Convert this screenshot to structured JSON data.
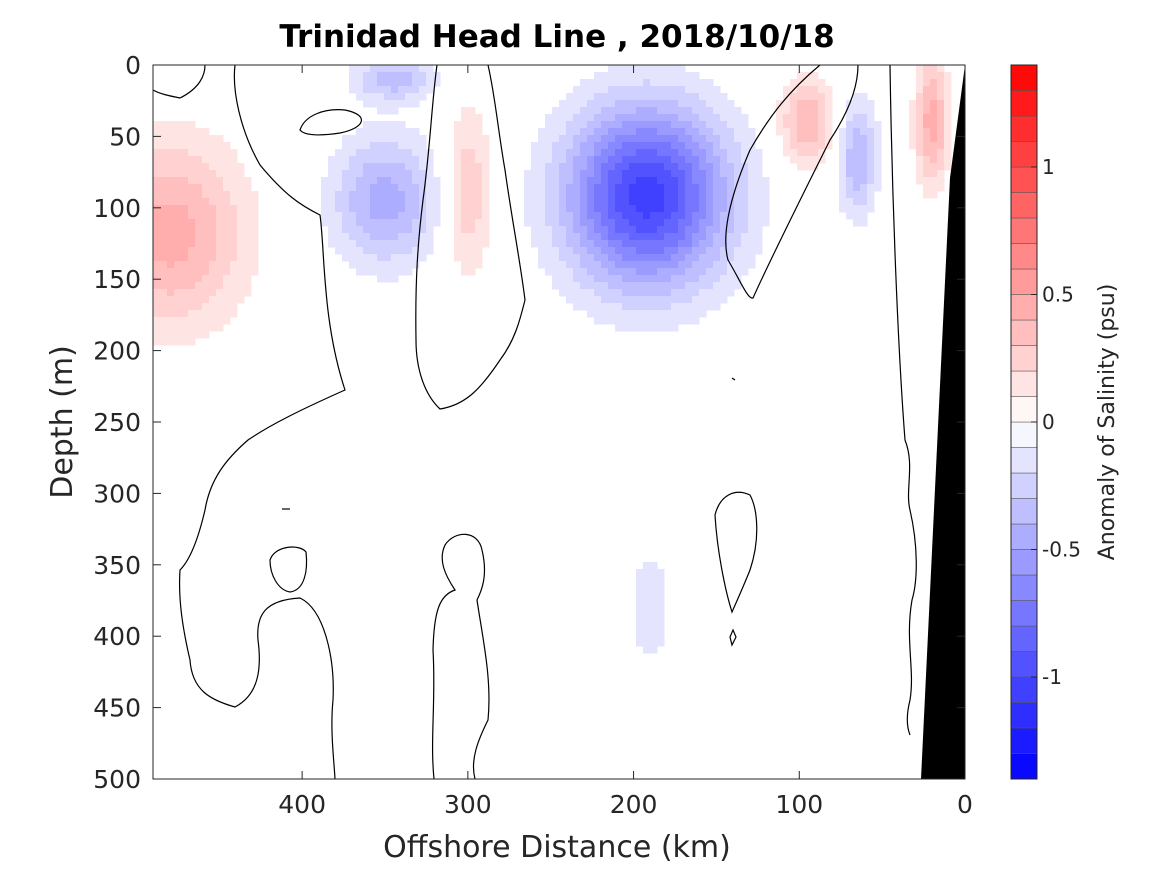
{
  "chart_data": {
    "type": "heatmap",
    "title": "Trinidad Head Line , 2018/10/18",
    "xlabel": "Offshore Distance (km)",
    "ylabel": "Depth (m)",
    "colorbar_label": "Anomaly of Salinity (psu)",
    "xlim": [
      490,
      0
    ],
    "ylim": [
      0,
      500
    ],
    "x_ticks": [
      400,
      300,
      200,
      100,
      0
    ],
    "y_ticks": [
      0,
      50,
      100,
      150,
      200,
      250,
      300,
      350,
      400,
      450,
      500
    ],
    "colorbar": {
      "range": [
        -1.4,
        1.4
      ],
      "ticks": [
        {
          "value": 1,
          "label": "1"
        },
        {
          "value": 0.5,
          "label": "0.5"
        },
        {
          "value": 0,
          "label": "0"
        },
        {
          "value": -0.5,
          "label": "-0.5"
        },
        {
          "value": -1,
          "label": "-1"
        }
      ],
      "colormap": "blue-white-red",
      "levels": 28
    },
    "anomaly_features": [
      {
        "x": 480,
        "y": 118,
        "value": 0.45,
        "sx": 45,
        "sy": 65
      },
      {
        "x": 350,
        "y": 95,
        "value": -0.45,
        "sx": 32,
        "sy": 45
      },
      {
        "x": 345,
        "y": 10,
        "value": -0.35,
        "sx": 25,
        "sy": 15
      },
      {
        "x": 300,
        "y": 90,
        "value": 0.3,
        "sx": 15,
        "sy": 60
      },
      {
        "x": 192,
        "y": 92,
        "value": -1.05,
        "sx": 48,
        "sy": 62
      },
      {
        "x": 190,
        "y": 380,
        "value": -0.12,
        "sx": 22,
        "sy": 80
      },
      {
        "x": 95,
        "y": 40,
        "value": 0.4,
        "sx": 17,
        "sy": 30
      },
      {
        "x": 65,
        "y": 65,
        "value": -0.4,
        "sx": 12,
        "sy": 40
      },
      {
        "x": 20,
        "y": 40,
        "value": 0.45,
        "sx": 10,
        "sy": 45
      }
    ],
    "contour_level": 0,
    "bottom_topography": {
      "label_color": "#000000",
      "points": [
        [
          0,
          0
        ],
        [
          0,
          500
        ],
        [
          25,
          500
        ],
        [
          14,
          100
        ]
      ]
    }
  }
}
